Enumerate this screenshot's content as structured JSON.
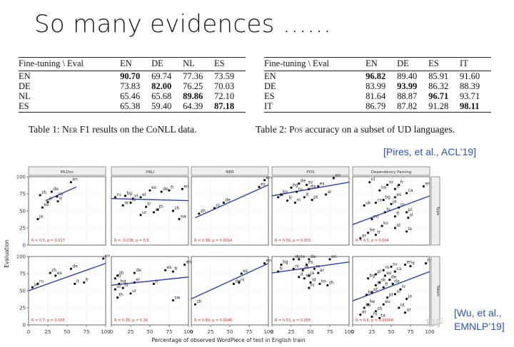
{
  "slide": {
    "title": "So many evidences ……"
  },
  "table1": {
    "header": [
      "Fine-tuning \\ Eval",
      "EN",
      "DE",
      "NL",
      "ES"
    ],
    "rows": [
      {
        "label": "EN",
        "values": [
          "90.70",
          "69.74",
          "77.36",
          "73.59"
        ],
        "bold": 0
      },
      {
        "label": "DE",
        "values": [
          "73.83",
          "82.00",
          "76.25",
          "70.03"
        ],
        "bold": 1
      },
      {
        "label": "NL",
        "values": [
          "65.46",
          "65.68",
          "89.86",
          "72.10"
        ],
        "bold": 2
      },
      {
        "label": "ES",
        "values": [
          "65.38",
          "59.40",
          "64.39",
          "87.18"
        ],
        "bold": 3
      }
    ],
    "caption": {
      "prefix": "Table 1: ",
      "sc": "Ner",
      "suffix": " F1 results on the CoNLL data."
    }
  },
  "table2": {
    "header": [
      "Fine-tuning \\ Eval",
      "EN",
      "DE",
      "ES",
      "IT"
    ],
    "rows": [
      {
        "label": "EN",
        "values": [
          "96.82",
          "89.40",
          "85.91",
          "91.60"
        ],
        "bold": 0
      },
      {
        "label": "DE",
        "values": [
          "83.99",
          "93.99",
          "86.32",
          "88.39"
        ],
        "bold": 1
      },
      {
        "label": "ES",
        "values": [
          "81.64",
          "88.87",
          "96.71",
          "93.71"
        ],
        "bold": 2
      },
      {
        "label": "IT",
        "values": [
          "86.79",
          "87.82",
          "91.28",
          "98.11"
        ],
        "bold": 3
      }
    ],
    "caption": {
      "prefix": "Table 2: ",
      "sc": "Pos",
      "suffix": " accuracy on a subset of UD languages."
    }
  },
  "citations": {
    "first": "[Pires, et al., ACL’19]",
    "second_line1": "[Wu, et al.,",
    "second_line2": "EMNLP’19]"
  },
  "watermark": "知乎",
  "chart_data": {
    "type": "scatter",
    "xlabel": "Percentage of observed WordPiece of test in English train",
    "ylabel": "Evaluation",
    "xlim": [
      0,
      100
    ],
    "ylim": [
      0,
      100
    ],
    "x_ticks": [
      "0",
      "25",
      "50",
      "75",
      "100"
    ],
    "y_ticks": [
      "100",
      "75",
      "50",
      "25",
      "0"
    ],
    "columns": [
      "MLDoc",
      "XNLI",
      "NER",
      "POS",
      "Dependency Parsing"
    ],
    "rows": [
      "Type",
      "Token"
    ],
    "panels": [
      {
        "row": 0,
        "col": 0,
        "fit": [
          [
            22,
            62
          ],
          [
            65,
            85
          ]
        ],
        "annotation": "R = 0.5, p = 0.017",
        "points": [
          [
            55,
            92,
            "en"
          ],
          [
            30,
            78,
            "de"
          ],
          [
            15,
            73,
            "zh"
          ],
          [
            37,
            71,
            "ru"
          ],
          [
            25,
            63,
            "fr"
          ],
          [
            38,
            64,
            "it"
          ],
          [
            18,
            55,
            "es"
          ],
          [
            12,
            38,
            "ja"
          ]
        ]
      },
      {
        "row": 0,
        "col": 1,
        "fit": [
          [
            0,
            100
          ],
          [
            68,
            65
          ]
        ],
        "annotation": "R = -0.036, p = 0.8",
        "points": [
          [
            92,
            82,
            "en"
          ],
          [
            50,
            80,
            "es"
          ],
          [
            75,
            80,
            "fr"
          ],
          [
            65,
            78,
            "de"
          ],
          [
            18,
            72,
            "bg"
          ],
          [
            5,
            70,
            "ru"
          ],
          [
            28,
            68,
            "vi"
          ],
          [
            38,
            70,
            "el"
          ],
          [
            25,
            62,
            "hi"
          ],
          [
            15,
            58,
            "ar"
          ],
          [
            45,
            56,
            "tr"
          ],
          [
            60,
            52,
            "th"
          ],
          [
            80,
            50,
            "zh"
          ],
          [
            55,
            48,
            "ur"
          ],
          [
            38,
            44,
            "ur"
          ],
          [
            88,
            38,
            "sw"
          ]
        ]
      },
      {
        "row": 0,
        "col": 2,
        "fit": [
          [
            5,
            100
          ],
          [
            40,
            88
          ]
        ],
        "annotation": "R = 0.98, p = 0.0014",
        "points": [
          [
            95,
            95,
            "en"
          ],
          [
            88,
            85,
            "es"
          ],
          [
            42,
            62,
            "de"
          ],
          [
            30,
            54,
            "nl"
          ],
          [
            10,
            46,
            "zh"
          ]
        ]
      },
      {
        "row": 0,
        "col": 3,
        "fit": [
          [
            0,
            100
          ],
          [
            72,
            92
          ]
        ],
        "annotation": "R = 0.56, p = 0.003",
        "points": [
          [
            80,
            98,
            "en"
          ],
          [
            35,
            90,
            "de"
          ],
          [
            45,
            88,
            "sv"
          ],
          [
            60,
            86,
            "es"
          ],
          [
            25,
            84,
            "bg"
          ],
          [
            48,
            82,
            "da"
          ],
          [
            32,
            78,
            "ru"
          ],
          [
            12,
            74,
            "ko"
          ],
          [
            42,
            70,
            "it"
          ],
          [
            52,
            66,
            "pt"
          ],
          [
            30,
            62,
            "nl"
          ],
          [
            20,
            65,
            "fr"
          ],
          [
            70,
            74,
            "ar"
          ],
          [
            8,
            70,
            "ja"
          ]
        ]
      },
      {
        "row": 0,
        "col": 4,
        "fit": [
          [
            0,
            100
          ],
          [
            30,
            72
          ]
        ],
        "annotation": "R = 0.5, p = 0.004",
        "points": [
          [
            92,
            86,
            "en"
          ],
          [
            22,
            92,
            "nl"
          ],
          [
            45,
            88,
            "ro"
          ],
          [
            60,
            88,
            "fr"
          ],
          [
            55,
            82,
            "it"
          ],
          [
            35,
            80,
            "no"
          ],
          [
            70,
            76,
            "ca"
          ],
          [
            55,
            70,
            "es"
          ],
          [
            40,
            66,
            "bg"
          ],
          [
            30,
            62,
            "cs"
          ],
          [
            15,
            58,
            "uk"
          ],
          [
            50,
            60,
            "ja"
          ],
          [
            60,
            55,
            "ro"
          ],
          [
            70,
            48,
            "pl"
          ],
          [
            42,
            48,
            "hi"
          ],
          [
            25,
            38,
            "eu"
          ],
          [
            55,
            42,
            "fi"
          ],
          [
            72,
            40,
            "sl"
          ],
          [
            38,
            28,
            "ko"
          ],
          [
            55,
            25,
            "id"
          ],
          [
            70,
            20,
            "la"
          ],
          [
            20,
            18,
            "he"
          ],
          [
            10,
            10,
            "ar"
          ],
          [
            30,
            15,
            "tr"
          ]
        ]
      },
      {
        "row": 1,
        "col": 0,
        "fit": [
          [
            0,
            100
          ],
          [
            50,
            90
          ]
        ],
        "annotation": "R = 0.7, p = 0.005",
        "points": [
          [
            97,
            97,
            "en"
          ],
          [
            55,
            82,
            "de"
          ],
          [
            28,
            76,
            "zh"
          ],
          [
            35,
            72,
            "es"
          ],
          [
            12,
            60,
            "ru"
          ],
          [
            60,
            60,
            "it"
          ],
          [
            72,
            62,
            "fr"
          ],
          [
            5,
            55,
            "ja"
          ]
        ]
      },
      {
        "row": 1,
        "col": 1,
        "fit": [
          [
            0,
            100
          ],
          [
            58,
            70
          ]
        ],
        "annotation": "R = 0.38, p = 0.16",
        "points": [
          [
            95,
            88,
            "en"
          ],
          [
            70,
            80,
            "es"
          ],
          [
            80,
            78,
            "fr"
          ],
          [
            30,
            76,
            "de"
          ],
          [
            8,
            72,
            "zh"
          ],
          [
            5,
            68,
            "ru"
          ],
          [
            30,
            62,
            "el"
          ],
          [
            10,
            60,
            "bg"
          ],
          [
            55,
            60,
            "tr"
          ],
          [
            15,
            54,
            "hi"
          ],
          [
            5,
            52,
            "ur"
          ],
          [
            25,
            46,
            "ur"
          ],
          [
            8,
            40,
            "th"
          ],
          [
            80,
            36,
            "sw"
          ]
        ]
      },
      {
        "row": 1,
        "col": 2,
        "fit": [
          [
            0,
            100
          ],
          [
            38,
            90
          ]
        ],
        "annotation": "R = 0.89, p = 0.0046",
        "points": [
          [
            95,
            90,
            "en"
          ],
          [
            65,
            75,
            "es"
          ],
          [
            62,
            62,
            "nl"
          ],
          [
            55,
            60,
            "de"
          ],
          [
            5,
            30,
            "zh"
          ]
        ]
      },
      {
        "row": 1,
        "col": 3,
        "fit": [
          [
            0,
            100
          ],
          [
            76,
            92
          ]
        ],
        "annotation": "R = 0.53, p = 0.005",
        "points": [
          [
            75,
            96,
            "en"
          ],
          [
            28,
            96,
            "de"
          ],
          [
            48,
            96,
            "da"
          ],
          [
            35,
            96,
            "sv"
          ],
          [
            12,
            88,
            "bg"
          ],
          [
            45,
            88,
            "es"
          ],
          [
            28,
            82,
            "nl"
          ],
          [
            40,
            80,
            "pt"
          ],
          [
            55,
            82,
            "ro"
          ],
          [
            60,
            76,
            "ar"
          ],
          [
            48,
            72,
            "ja"
          ],
          [
            8,
            78,
            "fr"
          ],
          [
            35,
            70,
            "it"
          ],
          [
            42,
            68,
            "sk"
          ],
          [
            50,
            62,
            "id"
          ],
          [
            62,
            60,
            "ko"
          ],
          [
            72,
            58,
            "zh"
          ],
          [
            48,
            54,
            "hi"
          ]
        ]
      },
      {
        "row": 1,
        "col": 4,
        "fit": [
          [
            0,
            100
          ],
          [
            35,
            78
          ]
        ],
        "annotation": "R = 0.6, p = 0.00004",
        "points": [
          [
            95,
            90,
            "fr"
          ],
          [
            68,
            88,
            "en"
          ],
          [
            50,
            85,
            "sv"
          ],
          [
            75,
            86,
            "it"
          ],
          [
            40,
            80,
            "ro"
          ],
          [
            55,
            78,
            "ca"
          ],
          [
            30,
            74,
            "pl"
          ],
          [
            42,
            72,
            "es"
          ],
          [
            20,
            68,
            "bg"
          ],
          [
            48,
            66,
            "de"
          ],
          [
            52,
            60,
            "da"
          ],
          [
            35,
            62,
            "sk"
          ],
          [
            30,
            58,
            "sl"
          ],
          [
            40,
            55,
            "fi"
          ],
          [
            62,
            52,
            "lv"
          ],
          [
            25,
            48,
            "et"
          ],
          [
            18,
            44,
            "hu"
          ],
          [
            55,
            45,
            "nl"
          ],
          [
            45,
            40,
            "pt"
          ],
          [
            70,
            38,
            "ja"
          ],
          [
            20,
            30,
            "he"
          ],
          [
            15,
            25,
            "ko"
          ],
          [
            30,
            20,
            "zh"
          ],
          [
            10,
            15,
            "ar"
          ],
          [
            25,
            12,
            "hi"
          ],
          [
            35,
            10,
            "ta"
          ],
          [
            60,
            25,
            "id"
          ],
          [
            68,
            18,
            "ur"
          ],
          [
            40,
            30,
            "eu"
          ]
        ]
      }
    ]
  }
}
